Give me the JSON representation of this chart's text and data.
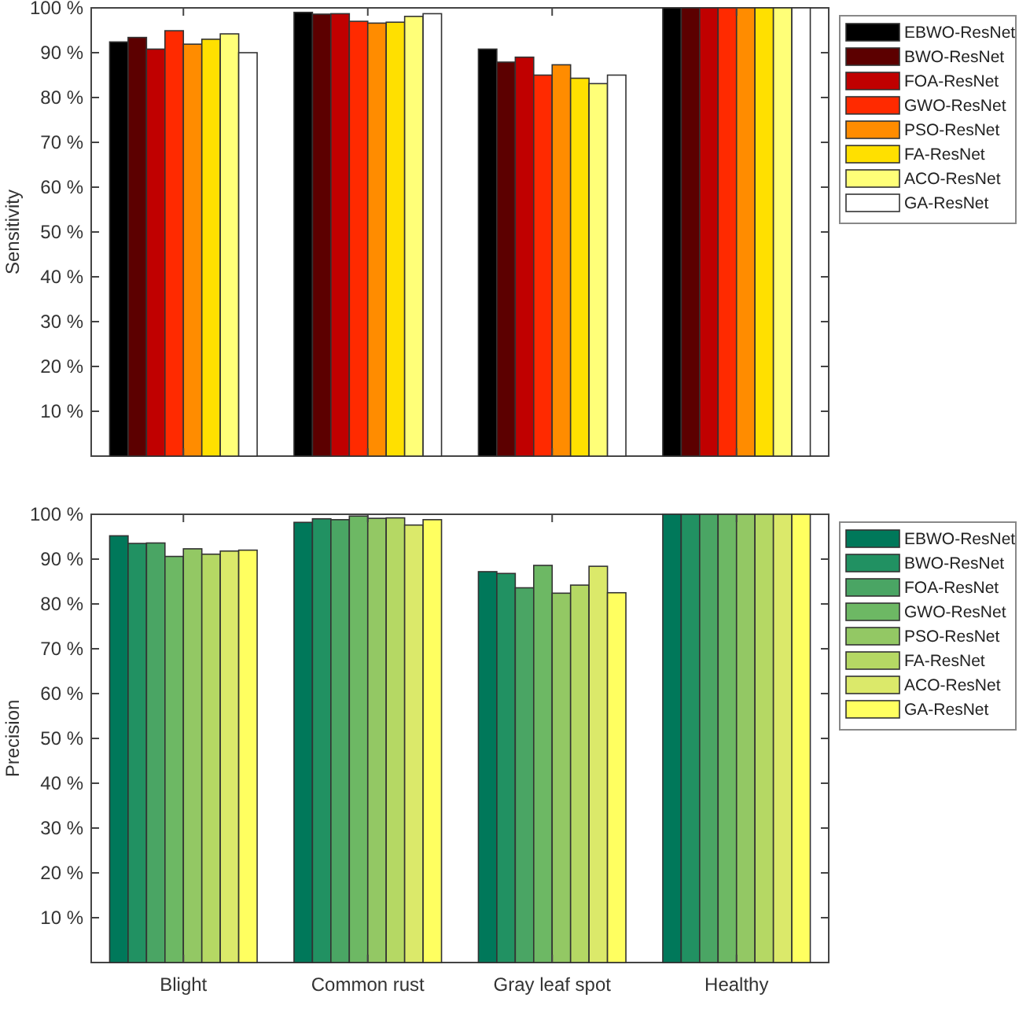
{
  "chart_data": [
    {
      "type": "bar",
      "ylabel": "Sensitivity",
      "categories": [
        null,
        null,
        null,
        null
      ],
      "tick_labels": "y",
      "legend": "top right",
      "ylim": [
        0,
        100
      ],
      "yticks": [
        {
          "value": 10,
          "label": "10 %"
        },
        {
          "value": 20,
          "label": "20 %"
        },
        {
          "value": 30,
          "label": "30 %"
        },
        {
          "value": 40,
          "label": "40 %"
        },
        {
          "value": 50,
          "label": "50 %"
        },
        {
          "value": 60,
          "label": "60 %"
        },
        {
          "value": 70,
          "label": "70 %"
        },
        {
          "value": 80,
          "label": "80 %"
        },
        {
          "value": 90,
          "label": "90 %"
        },
        {
          "value": 100,
          "label": "100 %"
        }
      ],
      "series": [
        {
          "name": "EBWO-ResNet",
          "color": "#000000",
          "values": [
            92.4,
            99.0,
            90.8,
            100
          ]
        },
        {
          "name": "BWO-ResNet",
          "color": "#5c0000",
          "values": [
            93.4,
            98.6,
            87.9,
            100
          ]
        },
        {
          "name": "FOA-ResNet",
          "color": "#c00000",
          "values": [
            90.8,
            98.7,
            89.0,
            100
          ]
        },
        {
          "name": "GWO-ResNet",
          "color": "#ff2a00",
          "values": [
            94.9,
            97.0,
            85.0,
            100
          ]
        },
        {
          "name": "PSO-ResNet",
          "color": "#ff8c00",
          "values": [
            91.9,
            96.6,
            87.3,
            100
          ]
        },
        {
          "name": "FA-ResNet",
          "color": "#ffe000",
          "values": [
            93.0,
            96.8,
            84.3,
            100
          ]
        },
        {
          "name": "ACO-ResNet",
          "color": "#ffff78",
          "values": [
            94.2,
            98.1,
            83.1,
            100
          ]
        },
        {
          "name": "GA-ResNet",
          "color": "#ffffff",
          "values": [
            90.0,
            98.7,
            85.0,
            100
          ]
        }
      ]
    },
    {
      "type": "bar",
      "ylabel": "Precision",
      "categories": [
        "Blight",
        "Common rust",
        "Gray leaf spot",
        "Healthy"
      ],
      "legend": "top right",
      "ylim": [
        0,
        100
      ],
      "yticks": [
        {
          "value": 10,
          "label": "10 %"
        },
        {
          "value": 20,
          "label": "20 %"
        },
        {
          "value": 30,
          "label": "30 %"
        },
        {
          "value": 40,
          "label": "40 %"
        },
        {
          "value": 50,
          "label": "50 %"
        },
        {
          "value": 60,
          "label": "60 %"
        },
        {
          "value": 70,
          "label": "70 %"
        },
        {
          "value": 80,
          "label": "80 %"
        },
        {
          "value": 90,
          "label": "90 %"
        },
        {
          "value": 100,
          "label": "100 %"
        }
      ],
      "series": [
        {
          "name": "EBWO-ResNet",
          "color": "#00785a",
          "values": [
            95.2,
            98.2,
            87.2,
            100
          ]
        },
        {
          "name": "BWO-ResNet",
          "color": "#219162",
          "values": [
            93.5,
            99.0,
            86.8,
            100
          ]
        },
        {
          "name": "FOA-ResNet",
          "color": "#4aa564",
          "values": [
            93.6,
            98.8,
            83.6,
            100
          ]
        },
        {
          "name": "GWO-ResNet",
          "color": "#6db864",
          "values": [
            90.6,
            99.6,
            88.6,
            100
          ]
        },
        {
          "name": "PSO-ResNet",
          "color": "#93c864",
          "values": [
            92.3,
            99.1,
            82.4,
            100
          ]
        },
        {
          "name": "FA-ResNet",
          "color": "#b5d864",
          "values": [
            91.1,
            99.2,
            84.2,
            100
          ]
        },
        {
          "name": "ACO-ResNet",
          "color": "#dbe96a",
          "values": [
            91.8,
            97.6,
            88.4,
            100
          ]
        },
        {
          "name": "GA-ResNet",
          "color": "#ffff60",
          "values": [
            92.0,
            98.8,
            82.5,
            100
          ]
        }
      ]
    }
  ]
}
